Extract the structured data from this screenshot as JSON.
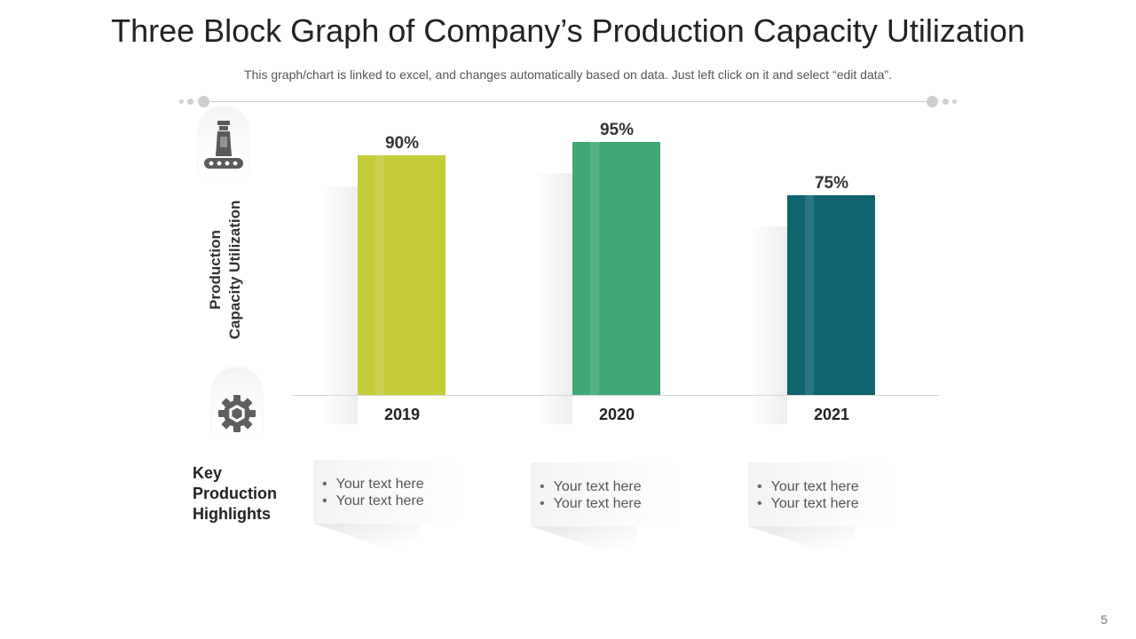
{
  "title": "Three Block Graph of Company’s Production Capacity Utilization",
  "subtitle": "This graph/chart is linked to excel, and changes automatically based on data. Just left click on it and select “edit data”.",
  "icons": {
    "top": "factory-chimney-icon",
    "bottom": "gear-icon"
  },
  "key": {
    "line1": "Key",
    "line2": "Production",
    "line3": "Highlights"
  },
  "cards": [
    {
      "bullets": [
        "Your text here",
        "Your text here"
      ]
    },
    {
      "bullets": [
        "Your text here",
        "Your text here"
      ]
    },
    {
      "bullets": [
        "Your text here",
        "Your text here"
      ]
    }
  ],
  "page_number": "5",
  "chart_data": {
    "type": "bar",
    "title": "Three Block Graph of Company’s Production Capacity Utilization",
    "xlabel": "",
    "ylabel": "Production Capacity Utilization",
    "ylabel_lines": [
      "Production",
      "Capacity Utilization"
    ],
    "categories": [
      "2019",
      "2020",
      "2021"
    ],
    "values": [
      90,
      95,
      75
    ],
    "value_labels": [
      "90%",
      "95%",
      "75%"
    ],
    "colors": [
      "#c5cc37",
      "#3fa874",
      "#0f6470"
    ],
    "ylim": [
      0,
      100
    ],
    "grid": false
  }
}
